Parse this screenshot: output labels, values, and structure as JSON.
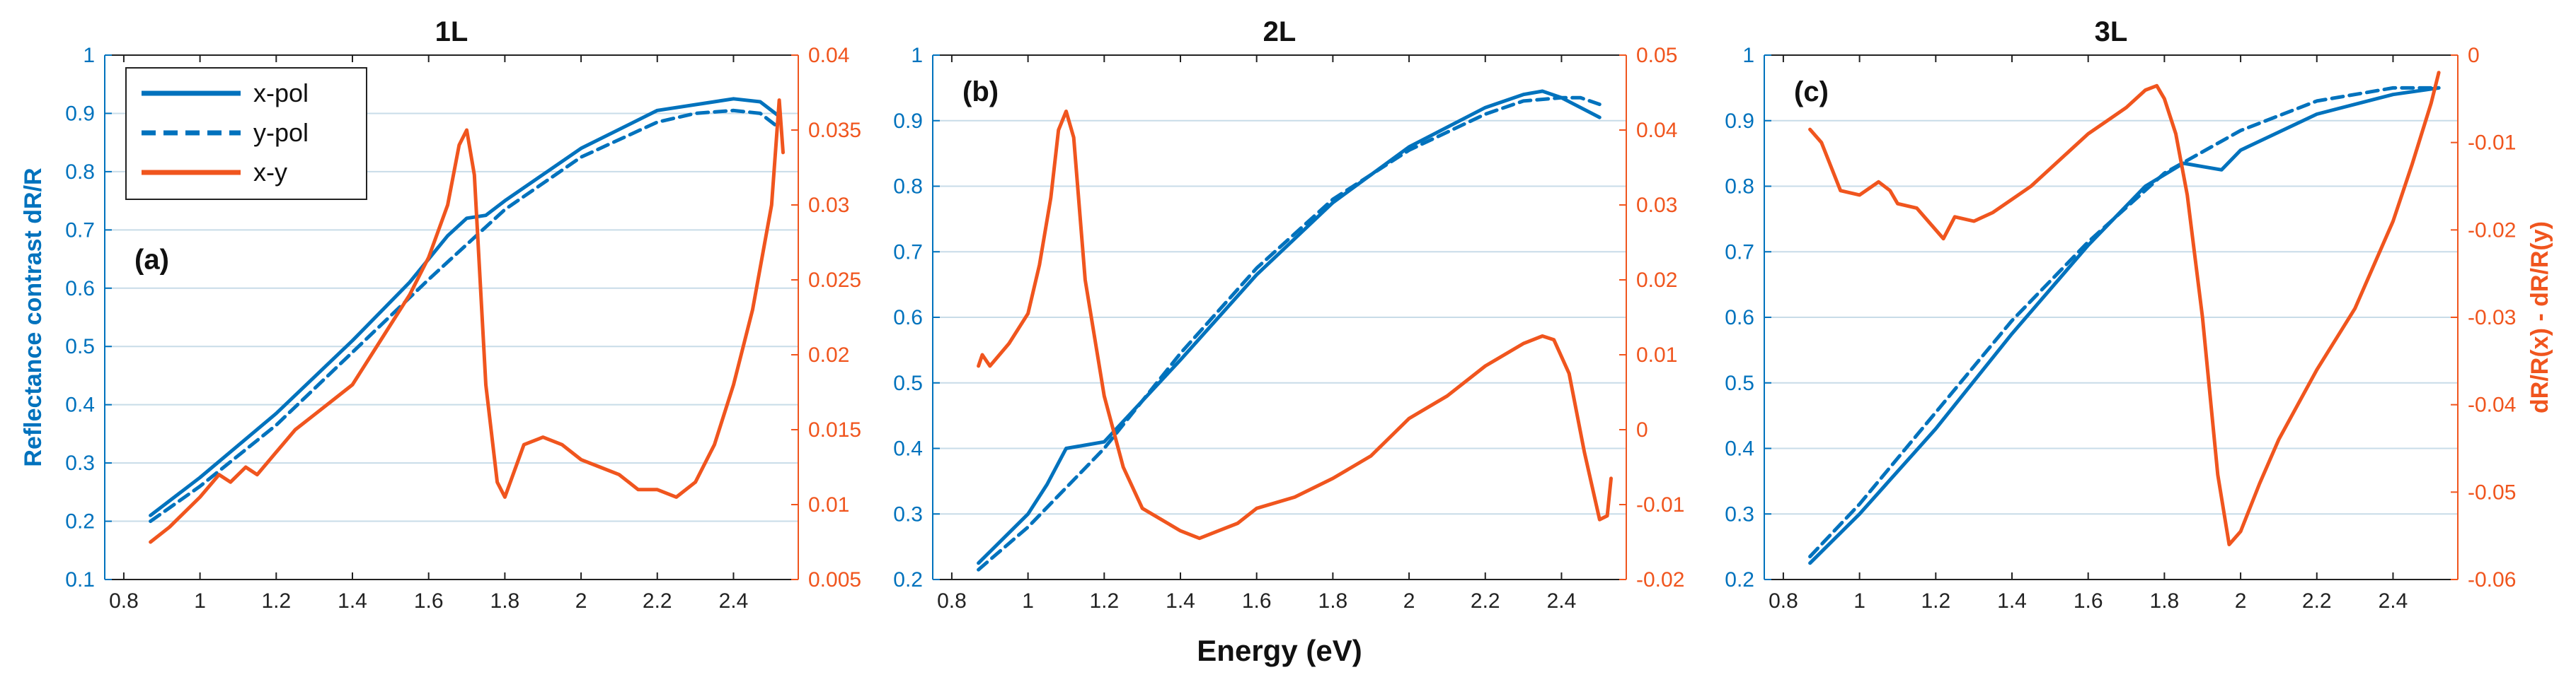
{
  "figure": {
    "xlabel": "Energy (eV)",
    "left_ylabel": "Reflectance contrast dR/R",
    "right_ylabel": "dR/R(x) - dR/R(y)",
    "colors": {
      "x_pol": "#0072bd",
      "y_pol": "#0072bd",
      "diff": "#f0551e",
      "grid": "#c8dce8",
      "axis_dark": "#222222"
    }
  },
  "legend": {
    "entries": [
      {
        "label": "x-pol",
        "style": "solid",
        "color": "#0072bd"
      },
      {
        "label": "y-pol",
        "style": "dashed",
        "color": "#0072bd"
      },
      {
        "label": "x-y",
        "style": "solid",
        "color": "#f0551e"
      }
    ]
  },
  "chart_data": [
    {
      "type": "line",
      "title": "1L",
      "panel_label": "(a)",
      "xlabel": "",
      "ylabel_left": "Reflectance contrast dR/R",
      "ylabel_right": "",
      "xlim": [
        0.75,
        2.57
      ],
      "xticks": [
        0.8,
        1,
        1.2,
        1.4,
        1.6,
        1.8,
        2,
        2.2,
        2.4
      ],
      "xtick_labels": [
        "0.8",
        "1",
        "1.2",
        "1.4",
        "1.6",
        "1.8",
        "2",
        "2.2",
        "2.4"
      ],
      "ylim_left": [
        0.1,
        1
      ],
      "yticks_left": [
        0.1,
        0.2,
        0.3,
        0.4,
        0.5,
        0.6,
        0.7,
        0.8,
        0.9,
        1
      ],
      "ytick_labels_left": [
        "0.1",
        "0.2",
        "0.3",
        "0.4",
        "0.5",
        "0.6",
        "0.7",
        "0.8",
        "0.9",
        "1"
      ],
      "ylim_right": [
        0.005,
        0.04
      ],
      "yticks_right": [
        0.005,
        0.01,
        0.015,
        0.02,
        0.025,
        0.03,
        0.035,
        0.04
      ],
      "ytick_labels_right": [
        "0.005",
        "0.01",
        "0.015",
        "0.02",
        "0.025",
        "0.03",
        "0.035",
        "0.04"
      ],
      "grid": true,
      "series": [
        {
          "name": "x-pol",
          "axis": "left",
          "style": "solid",
          "x": [
            0.87,
            1.0,
            1.2,
            1.4,
            1.55,
            1.65,
            1.7,
            1.75,
            1.8,
            2.0,
            2.2,
            2.4,
            2.47,
            2.52
          ],
          "y": [
            0.21,
            0.275,
            0.385,
            0.51,
            0.61,
            0.69,
            0.72,
            0.725,
            0.75,
            0.84,
            0.905,
            0.925,
            0.92,
            0.895
          ]
        },
        {
          "name": "y-pol",
          "axis": "left",
          "style": "dashed",
          "x": [
            0.87,
            1.0,
            1.2,
            1.4,
            1.6,
            1.8,
            2.0,
            2.2,
            2.3,
            2.4,
            2.47,
            2.52
          ],
          "y": [
            0.2,
            0.26,
            0.365,
            0.49,
            0.615,
            0.735,
            0.825,
            0.885,
            0.9,
            0.905,
            0.9,
            0.875
          ]
        },
        {
          "name": "x-y",
          "axis": "right",
          "style": "solid",
          "x": [
            0.87,
            0.92,
            1.0,
            1.05,
            1.08,
            1.12,
            1.15,
            1.2,
            1.25,
            1.3,
            1.35,
            1.4,
            1.45,
            1.5,
            1.55,
            1.6,
            1.65,
            1.68,
            1.7,
            1.72,
            1.75,
            1.78,
            1.8,
            1.85,
            1.9,
            1.95,
            2.0,
            2.05,
            2.1,
            2.15,
            2.2,
            2.25,
            2.3,
            2.35,
            2.4,
            2.45,
            2.5,
            2.52,
            2.53
          ],
          "y": [
            0.0075,
            0.0085,
            0.0105,
            0.012,
            0.0115,
            0.0125,
            0.012,
            0.0135,
            0.015,
            0.016,
            0.017,
            0.018,
            0.02,
            0.022,
            0.024,
            0.0265,
            0.03,
            0.034,
            0.035,
            0.032,
            0.018,
            0.0115,
            0.0105,
            0.014,
            0.0145,
            0.014,
            0.013,
            0.0125,
            0.012,
            0.011,
            0.011,
            0.0105,
            0.0115,
            0.014,
            0.018,
            0.023,
            0.03,
            0.037,
            0.0335
          ]
        }
      ]
    },
    {
      "type": "line",
      "title": "2L",
      "panel_label": "(b)",
      "xlabel": "Energy (eV)",
      "ylabel_left": "",
      "ylabel_right": "",
      "xlim": [
        0.75,
        2.57
      ],
      "xticks": [
        0.8,
        1,
        1.2,
        1.4,
        1.6,
        1.8,
        2,
        2.2,
        2.4
      ],
      "xtick_labels": [
        "0.8",
        "1",
        "1.2",
        "1.4",
        "1.6",
        "1.8",
        "2",
        "2.2",
        "2.4"
      ],
      "ylim_left": [
        0.2,
        1
      ],
      "yticks_left": [
        0.2,
        0.3,
        0.4,
        0.5,
        0.6,
        0.7,
        0.8,
        0.9,
        1
      ],
      "ytick_labels_left": [
        "0.2",
        "0.3",
        "0.4",
        "0.5",
        "0.6",
        "0.7",
        "0.8",
        "0.9",
        "1"
      ],
      "ylim_right": [
        -0.02,
        0.05
      ],
      "yticks_right": [
        -0.02,
        -0.01,
        0,
        0.01,
        0.02,
        0.03,
        0.04,
        0.05
      ],
      "ytick_labels_right": [
        "-0.02",
        "-0.01",
        "0",
        "0.01",
        "0.02",
        "0.03",
        "0.04",
        "0.05"
      ],
      "grid": true,
      "series": [
        {
          "name": "x-pol",
          "axis": "left",
          "style": "solid",
          "x": [
            0.87,
            1.0,
            1.05,
            1.1,
            1.15,
            1.2,
            1.4,
            1.6,
            1.8,
            2.0,
            2.2,
            2.3,
            2.35,
            2.4,
            2.45,
            2.5
          ],
          "y": [
            0.225,
            0.3,
            0.345,
            0.4,
            0.405,
            0.41,
            0.535,
            0.665,
            0.775,
            0.86,
            0.92,
            0.94,
            0.945,
            0.935,
            0.92,
            0.905
          ]
        },
        {
          "name": "y-pol",
          "axis": "left",
          "style": "dashed",
          "x": [
            0.87,
            1.0,
            1.2,
            1.4,
            1.6,
            1.8,
            2.0,
            2.2,
            2.3,
            2.4,
            2.45,
            2.5
          ],
          "y": [
            0.215,
            0.28,
            0.4,
            0.545,
            0.675,
            0.78,
            0.855,
            0.91,
            0.93,
            0.935,
            0.935,
            0.925
          ]
        },
        {
          "name": "x-y",
          "axis": "right",
          "style": "solid",
          "x": [
            0.87,
            0.88,
            0.9,
            0.95,
            1.0,
            1.03,
            1.06,
            1.08,
            1.1,
            1.12,
            1.15,
            1.2,
            1.25,
            1.3,
            1.35,
            1.4,
            1.45,
            1.5,
            1.55,
            1.6,
            1.7,
            1.8,
            1.9,
            2.0,
            2.1,
            2.2,
            2.3,
            2.35,
            2.38,
            2.42,
            2.46,
            2.5,
            2.52,
            2.53
          ],
          "y": [
            0.0085,
            0.01,
            0.0085,
            0.0115,
            0.0155,
            0.022,
            0.031,
            0.04,
            0.0425,
            0.039,
            0.02,
            0.0045,
            -0.005,
            -0.0105,
            -0.012,
            -0.0135,
            -0.0145,
            -0.0135,
            -0.0125,
            -0.0105,
            -0.009,
            -0.0065,
            -0.0035,
            0.0015,
            0.0045,
            0.0085,
            0.0115,
            0.0125,
            0.012,
            0.0075,
            -0.003,
            -0.012,
            -0.0115,
            -0.0065
          ]
        }
      ]
    },
    {
      "type": "line",
      "title": "3L",
      "panel_label": "(c)",
      "xlabel": "",
      "ylabel_left": "",
      "ylabel_right": "dR/R(x) - dR/R(y)",
      "xlim": [
        0.75,
        2.57
      ],
      "xticks": [
        0.8,
        1,
        1.2,
        1.4,
        1.6,
        1.8,
        2,
        2.2,
        2.4
      ],
      "xtick_labels": [
        "0.8",
        "1",
        "1.2",
        "1.4",
        "1.6",
        "1.8",
        "2",
        "2.2",
        "2.4"
      ],
      "ylim_left": [
        0.2,
        1
      ],
      "yticks_left": [
        0.2,
        0.3,
        0.4,
        0.5,
        0.6,
        0.7,
        0.8,
        0.9,
        1
      ],
      "ytick_labels_left": [
        "0.2",
        "0.3",
        "0.4",
        "0.5",
        "0.6",
        "0.7",
        "0.8",
        "0.9",
        "1"
      ],
      "ylim_right": [
        -0.06,
        0
      ],
      "yticks_right": [
        -0.06,
        -0.05,
        -0.04,
        -0.03,
        -0.02,
        -0.01,
        0
      ],
      "ytick_labels_right": [
        "-0.06",
        "-0.05",
        "-0.04",
        "-0.03",
        "-0.02",
        "-0.01",
        "0"
      ],
      "grid": true,
      "series": [
        {
          "name": "x-pol",
          "axis": "left",
          "style": "solid",
          "x": [
            0.87,
            1.0,
            1.2,
            1.4,
            1.6,
            1.75,
            1.85,
            1.9,
            1.95,
            2.0,
            2.2,
            2.4,
            2.52
          ],
          "y": [
            0.225,
            0.3,
            0.43,
            0.575,
            0.71,
            0.8,
            0.835,
            0.83,
            0.825,
            0.855,
            0.91,
            0.94,
            0.95
          ]
        },
        {
          "name": "y-pol",
          "axis": "left",
          "style": "dashed",
          "x": [
            0.87,
            1.0,
            1.2,
            1.4,
            1.6,
            1.8,
            2.0,
            2.2,
            2.4,
            2.52
          ],
          "y": [
            0.235,
            0.315,
            0.455,
            0.595,
            0.715,
            0.82,
            0.885,
            0.93,
            0.95,
            0.95
          ]
        },
        {
          "name": "x-y",
          "axis": "right",
          "style": "solid",
          "x": [
            0.87,
            0.9,
            0.95,
            1.0,
            1.05,
            1.08,
            1.1,
            1.15,
            1.2,
            1.22,
            1.25,
            1.3,
            1.35,
            1.4,
            1.45,
            1.5,
            1.55,
            1.6,
            1.65,
            1.7,
            1.75,
            1.78,
            1.8,
            1.83,
            1.86,
            1.9,
            1.94,
            1.97,
            2.0,
            2.05,
            2.1,
            2.2,
            2.3,
            2.4,
            2.45,
            2.5,
            2.52
          ],
          "y": [
            -0.0085,
            -0.01,
            -0.0155,
            -0.016,
            -0.0145,
            -0.0155,
            -0.017,
            -0.0175,
            -0.02,
            -0.021,
            -0.0185,
            -0.019,
            -0.018,
            -0.0165,
            -0.015,
            -0.013,
            -0.011,
            -0.009,
            -0.0075,
            -0.006,
            -0.004,
            -0.0035,
            -0.005,
            -0.009,
            -0.016,
            -0.03,
            -0.048,
            -0.056,
            -0.0545,
            -0.049,
            -0.044,
            -0.036,
            -0.029,
            -0.019,
            -0.0125,
            -0.0055,
            -0.002
          ]
        }
      ]
    }
  ]
}
